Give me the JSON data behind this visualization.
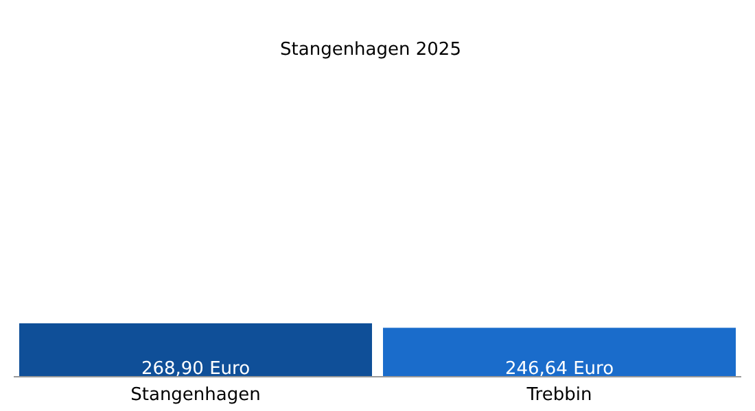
{
  "chart_data": {
    "type": "bar",
    "title": "Stangenhagen 2025",
    "categories": [
      "Stangenhagen",
      "Trebbin"
    ],
    "values": [
      268.9,
      246.64
    ],
    "colors": [
      "#0f4f98",
      "#1a6ccb"
    ],
    "value_labels": [
      "268,90 Euro",
      "246,64 Euro"
    ],
    "tick_labels": "x"
  }
}
